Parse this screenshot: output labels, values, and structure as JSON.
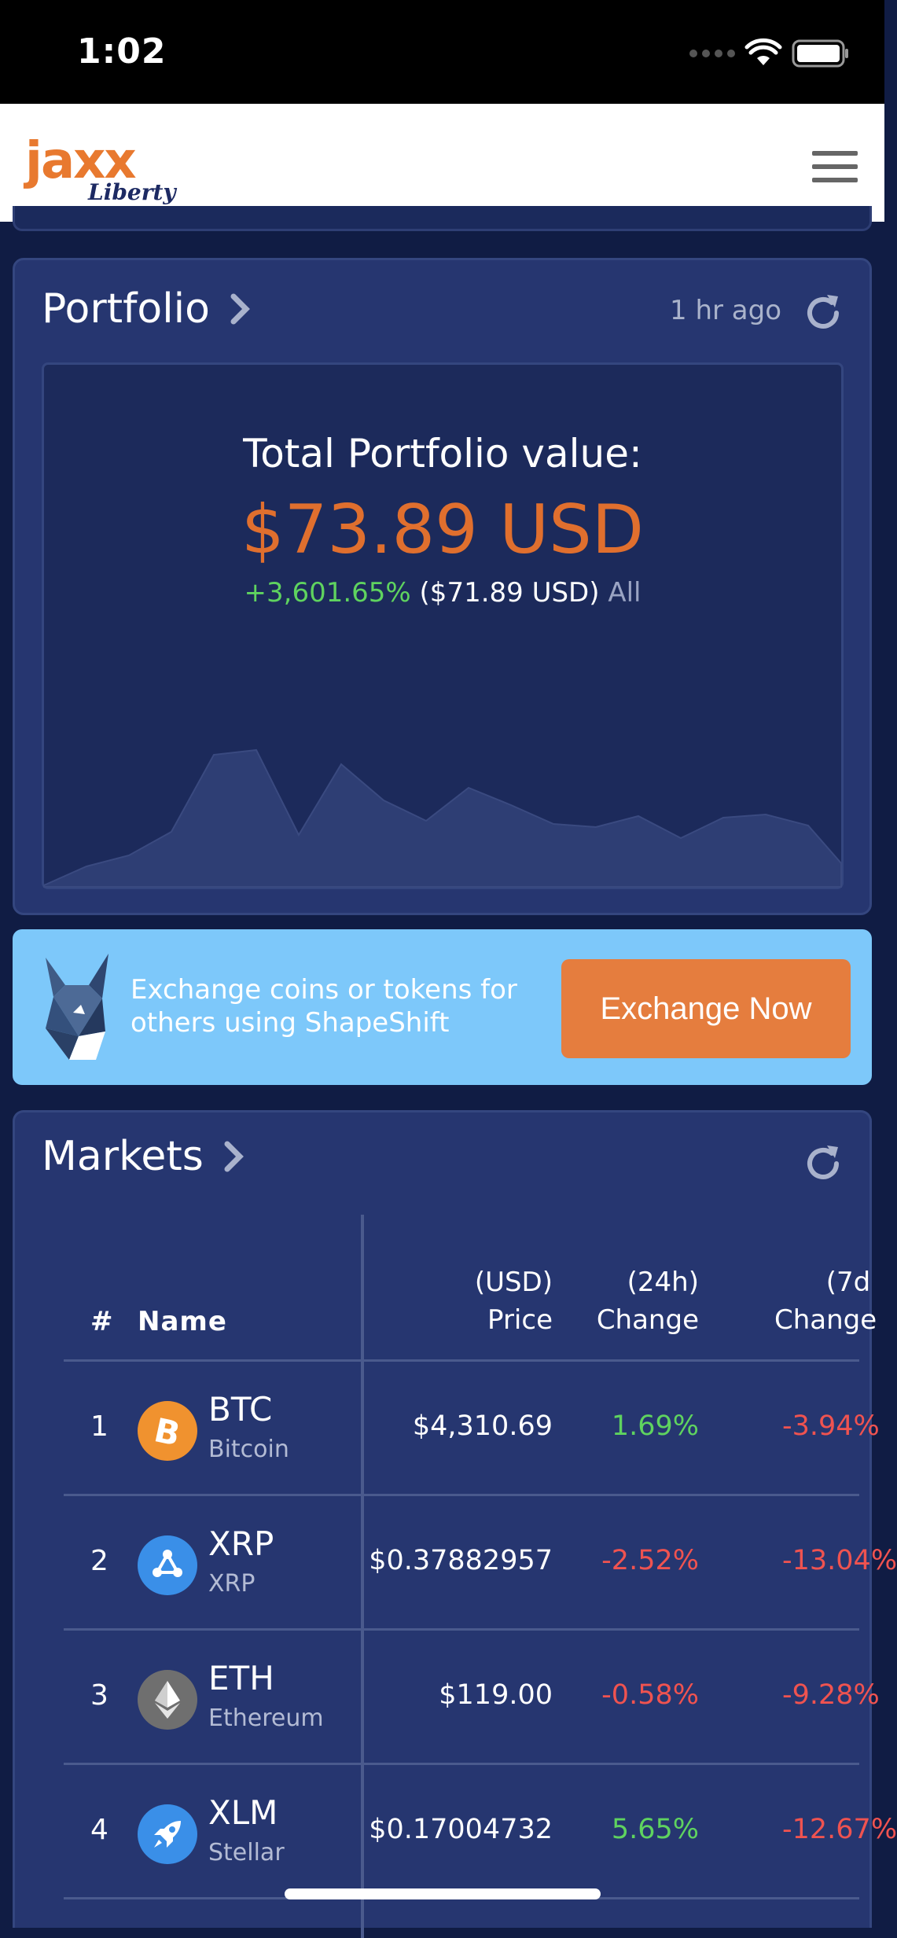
{
  "status_bar": {
    "time": "1:02"
  },
  "header": {
    "logo_text": "jaxx",
    "logo_sub": "Liberty"
  },
  "portfolio": {
    "title": "Portfolio",
    "updated": "1 hr ago",
    "total_label": "Total Portfolio value:",
    "total_value": "$73.89 USD",
    "change_pct": "+3,601.65%",
    "change_usd": "($71.89 USD)",
    "change_range": "All",
    "colors": {
      "value": "#e06f2e",
      "positive": "#5fd35f"
    }
  },
  "exchange": {
    "text": "Exchange coins or tokens for others using ShapeShift",
    "button": "Exchange Now"
  },
  "markets": {
    "title": "Markets",
    "headers": {
      "rank": "#",
      "name": "Name",
      "price_unit": "(USD)",
      "price": "Price",
      "change24_unit": "(24h)",
      "change24": "Change",
      "change7_unit": "(7d",
      "change7": "Change"
    },
    "rows": [
      {
        "rank": "1",
        "symbol": "BTC",
        "name": "Bitcoin",
        "price": "$4,310.69",
        "change24": "1.69%",
        "change7": "-3.94%",
        "icon": "bitcoin-icon"
      },
      {
        "rank": "2",
        "symbol": "XRP",
        "name": "XRP",
        "price": "$0.37882957",
        "change24": "-2.52%",
        "change7": "-13.04%",
        "icon": "xrp-icon"
      },
      {
        "rank": "3",
        "symbol": "ETH",
        "name": "Ethereum",
        "price": "$119.00",
        "change24": "-0.58%",
        "change7": "-9.28%",
        "icon": "ethereum-icon"
      },
      {
        "rank": "4",
        "symbol": "XLM",
        "name": "Stellar",
        "price": "$0.17004732",
        "change24": "5.65%",
        "change7": "-12.67%",
        "icon": "stellar-rocket-icon"
      }
    ],
    "colors": {
      "positive": "#5fd35f",
      "negative": "#ef5350"
    }
  }
}
